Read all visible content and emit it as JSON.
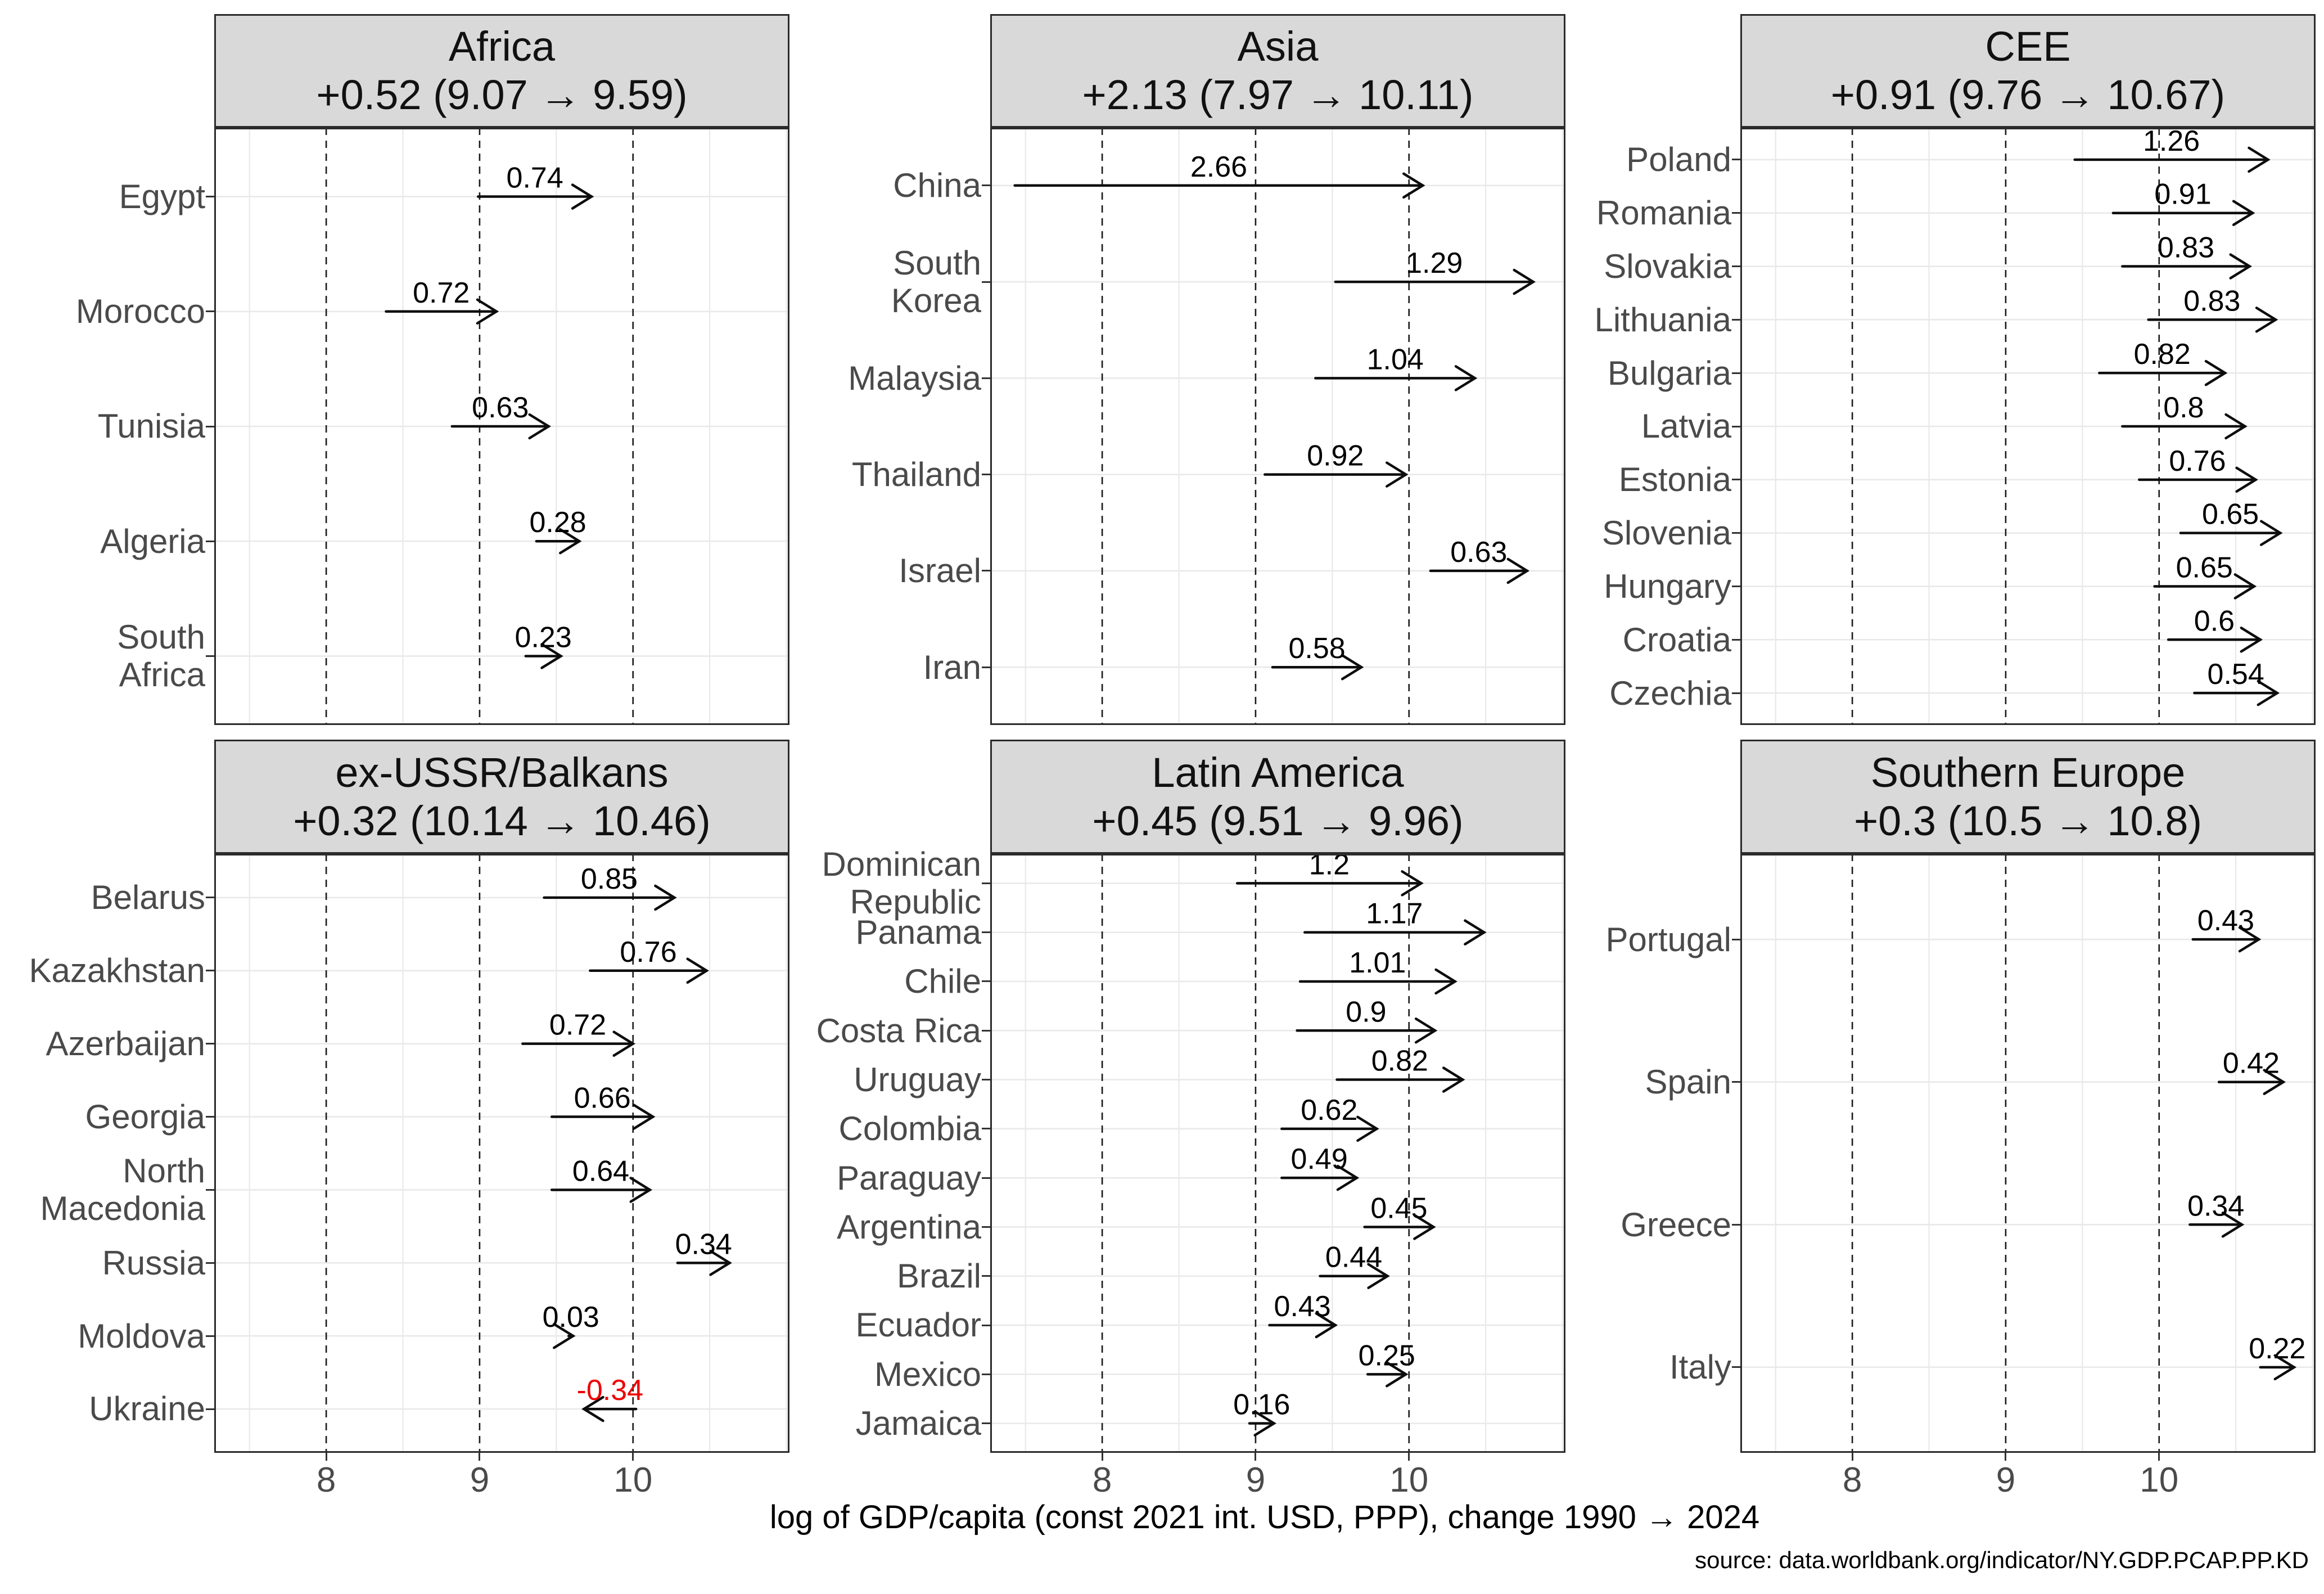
{
  "axis": {
    "label": "log of GDP/capita (const 2021 int. USD, PPP), change 1990 → 2024",
    "ticks": [
      "8",
      "9",
      "10"
    ],
    "range": [
      7.27,
      11.02
    ],
    "major_gridlines": [
      8,
      9,
      10
    ],
    "minor_gridlines": [
      7.5,
      8.5,
      9.5,
      10.5,
      11
    ],
    "grid": "dashed majors, light solid minors, light solid row lines"
  },
  "caption": "source: data.worldbank.org/indicator/NY.GDP.PCAP.PP.KD",
  "colors": {
    "strip_bg": "#d9d9d9",
    "panel_border": "#2b2b2b",
    "grid": "#e9e9e9",
    "reference_line": "#1a1a1a",
    "arrow": "#0d0d0d",
    "value_label": "#000000",
    "negative_label": "#ee0000",
    "axis_text": "#4a4a4a"
  },
  "chart_data": {
    "type": "arrow",
    "description": "Faceted dot-arrow (dumbbell) chart: per-country change in log GDP per capita from 1990 to 2024, arrows run from 1990 value to 2024 value, label above each arrow is the change",
    "xlabel": "log of GDP/capita (const 2021 int. USD, PPP), change 1990 → 2024",
    "legend": "none",
    "facets": [
      {
        "region": "Africa",
        "summary": "+0.52 (9.07 → 9.59)",
        "mean_change": 0.52,
        "mean_start": 9.07,
        "mean_end": 9.59,
        "countries": [
          {
            "name": "Egypt",
            "label": "Egypt",
            "start": 8.99,
            "end": 9.73,
            "change": 0.74,
            "change_label": "0.74"
          },
          {
            "name": "Morocco",
            "label": "Morocco",
            "start": 8.39,
            "end": 9.11,
            "change": 0.72,
            "change_label": "0.72"
          },
          {
            "name": "Tunisia",
            "label": "Tunisia",
            "start": 8.82,
            "end": 9.45,
            "change": 0.63,
            "change_label": "0.63"
          },
          {
            "name": "Algeria",
            "label": "Algeria",
            "start": 9.37,
            "end": 9.65,
            "change": 0.28,
            "change_label": "0.28"
          },
          {
            "name": "South Africa",
            "label": "South\nAfrica",
            "start": 9.3,
            "end": 9.53,
            "change": 0.23,
            "change_label": "0.23"
          }
        ]
      },
      {
        "region": "Asia",
        "summary": "+2.13 (7.97 → 10.11)",
        "mean_change": 2.13,
        "mean_start": 7.97,
        "mean_end": 10.11,
        "countries": [
          {
            "name": "China",
            "label": "China",
            "start": 7.43,
            "end": 10.09,
            "change": 2.66,
            "change_label": "2.66"
          },
          {
            "name": "South Korea",
            "label": "South\nKorea",
            "start": 9.52,
            "end": 10.81,
            "change": 1.29,
            "change_label": "1.29"
          },
          {
            "name": "Malaysia",
            "label": "Malaysia",
            "start": 9.39,
            "end": 10.43,
            "change": 1.04,
            "change_label": "1.04"
          },
          {
            "name": "Thailand",
            "label": "Thailand",
            "start": 9.06,
            "end": 9.98,
            "change": 0.92,
            "change_label": "0.92"
          },
          {
            "name": "Israel",
            "label": "Israel",
            "start": 10.14,
            "end": 10.77,
            "change": 0.63,
            "change_label": "0.63"
          },
          {
            "name": "Iran",
            "label": "Iran",
            "start": 9.11,
            "end": 9.69,
            "change": 0.58,
            "change_label": "0.58"
          }
        ]
      },
      {
        "region": "CEE",
        "summary": "+0.91 (9.76 → 10.67)",
        "mean_change": 0.91,
        "mean_start": 9.76,
        "mean_end": 10.67,
        "countries": [
          {
            "name": "Poland",
            "label": "Poland",
            "start": 9.45,
            "end": 10.71,
            "change": 1.26,
            "change_label": "1.26"
          },
          {
            "name": "Romania",
            "label": "Romania",
            "start": 9.7,
            "end": 10.61,
            "change": 0.91,
            "change_label": "0.91"
          },
          {
            "name": "Slovakia",
            "label": "Slovakia",
            "start": 9.76,
            "end": 10.59,
            "change": 0.83,
            "change_label": "0.83"
          },
          {
            "name": "Lithuania",
            "label": "Lithuania",
            "start": 9.93,
            "end": 10.76,
            "change": 0.83,
            "change_label": "0.83"
          },
          {
            "name": "Bulgaria",
            "label": "Bulgaria",
            "start": 9.61,
            "end": 10.43,
            "change": 0.82,
            "change_label": "0.82"
          },
          {
            "name": "Latvia",
            "label": "Latvia",
            "start": 9.76,
            "end": 10.56,
            "change": 0.8,
            "change_label": "0.8"
          },
          {
            "name": "Estonia",
            "label": "Estonia",
            "start": 9.87,
            "end": 10.63,
            "change": 0.76,
            "change_label": "0.76"
          },
          {
            "name": "Slovenia",
            "label": "Slovenia",
            "start": 10.14,
            "end": 10.79,
            "change": 0.65,
            "change_label": "0.65"
          },
          {
            "name": "Hungary",
            "label": "Hungary",
            "start": 9.97,
            "end": 10.62,
            "change": 0.65,
            "change_label": "0.65"
          },
          {
            "name": "Croatia",
            "label": "Croatia",
            "start": 10.06,
            "end": 10.66,
            "change": 0.6,
            "change_label": "0.6"
          },
          {
            "name": "Czechia",
            "label": "Czechia",
            "start": 10.23,
            "end": 10.77,
            "change": 0.54,
            "change_label": "0.54"
          }
        ]
      },
      {
        "region": "ex-USSR/Balkans",
        "summary": "+0.32 (10.14 → 10.46)",
        "mean_change": 0.32,
        "mean_start": 10.14,
        "mean_end": 10.46,
        "countries": [
          {
            "name": "Belarus",
            "label": "Belarus",
            "start": 9.42,
            "end": 10.27,
            "change": 0.85,
            "change_label": "0.85"
          },
          {
            "name": "Kazakhstan",
            "label": "Kazakhstan",
            "start": 9.72,
            "end": 10.48,
            "change": 0.76,
            "change_label": "0.76"
          },
          {
            "name": "Azerbaijan",
            "label": "Azerbaijan",
            "start": 9.28,
            "end": 10.0,
            "change": 0.72,
            "change_label": "0.72"
          },
          {
            "name": "Georgia",
            "label": "Georgia",
            "start": 9.47,
            "end": 10.13,
            "change": 0.66,
            "change_label": "0.66"
          },
          {
            "name": "North Macedonia",
            "label": "North\nMacedonia",
            "start": 9.47,
            "end": 10.11,
            "change": 0.64,
            "change_label": "0.64"
          },
          {
            "name": "Russia",
            "label": "Russia",
            "start": 10.29,
            "end": 10.63,
            "change": 0.34,
            "change_label": "0.34"
          },
          {
            "name": "Moldova",
            "label": "Moldova",
            "start": 9.58,
            "end": 9.61,
            "change": 0.03,
            "change_label": "0.03"
          },
          {
            "name": "Ukraine",
            "label": "Ukraine",
            "start": 10.02,
            "end": 9.68,
            "change": -0.34,
            "change_label": "-0.34"
          }
        ]
      },
      {
        "region": "Latin America",
        "summary": "+0.45 (9.51 → 9.96)",
        "mean_change": 0.45,
        "mean_start": 9.51,
        "mean_end": 9.96,
        "countries": [
          {
            "name": "Dominican Republic",
            "label": "Dominican\nRepublic",
            "start": 8.88,
            "end": 10.08,
            "change": 1.2,
            "change_label": "1.2"
          },
          {
            "name": "Panama",
            "label": "Panama",
            "start": 9.32,
            "end": 10.49,
            "change": 1.17,
            "change_label": "1.17"
          },
          {
            "name": "Chile",
            "label": "Chile",
            "start": 9.29,
            "end": 10.3,
            "change": 1.01,
            "change_label": "1.01"
          },
          {
            "name": "Costa Rica",
            "label": "Costa Rica",
            "start": 9.27,
            "end": 10.17,
            "change": 0.9,
            "change_label": "0.9"
          },
          {
            "name": "Uruguay",
            "label": "Uruguay",
            "start": 9.53,
            "end": 10.35,
            "change": 0.82,
            "change_label": "0.82"
          },
          {
            "name": "Colombia",
            "label": "Colombia",
            "start": 9.17,
            "end": 9.79,
            "change": 0.62,
            "change_label": "0.62"
          },
          {
            "name": "Paraguay",
            "label": "Paraguay",
            "start": 9.17,
            "end": 9.66,
            "change": 0.49,
            "change_label": "0.49"
          },
          {
            "name": "Argentina",
            "label": "Argentina",
            "start": 9.71,
            "end": 10.16,
            "change": 0.45,
            "change_label": "0.45"
          },
          {
            "name": "Brazil",
            "label": "Brazil",
            "start": 9.42,
            "end": 9.86,
            "change": 0.44,
            "change_label": "0.44"
          },
          {
            "name": "Ecuador",
            "label": "Ecuador",
            "start": 9.09,
            "end": 9.52,
            "change": 0.43,
            "change_label": "0.43"
          },
          {
            "name": "Mexico",
            "label": "Mexico",
            "start": 9.73,
            "end": 9.98,
            "change": 0.25,
            "change_label": "0.25"
          },
          {
            "name": "Jamaica",
            "label": "Jamaica",
            "start": 8.96,
            "end": 9.12,
            "change": 0.16,
            "change_label": "0.16"
          }
        ]
      },
      {
        "region": "Southern Europe",
        "summary": "+0.3 (10.5 → 10.8)",
        "mean_change": 0.3,
        "mean_start": 10.5,
        "mean_end": 10.8,
        "countries": [
          {
            "name": "Portugal",
            "label": "Portugal",
            "start": 10.22,
            "end": 10.65,
            "change": 0.43,
            "change_label": "0.43"
          },
          {
            "name": "Spain",
            "label": "Spain",
            "start": 10.39,
            "end": 10.81,
            "change": 0.42,
            "change_label": "0.42"
          },
          {
            "name": "Greece",
            "label": "Greece",
            "start": 10.2,
            "end": 10.54,
            "change": 0.34,
            "change_label": "0.34"
          },
          {
            "name": "Italy",
            "label": "Italy",
            "start": 10.66,
            "end": 10.88,
            "change": 0.22,
            "change_label": "0.22"
          }
        ]
      }
    ]
  }
}
